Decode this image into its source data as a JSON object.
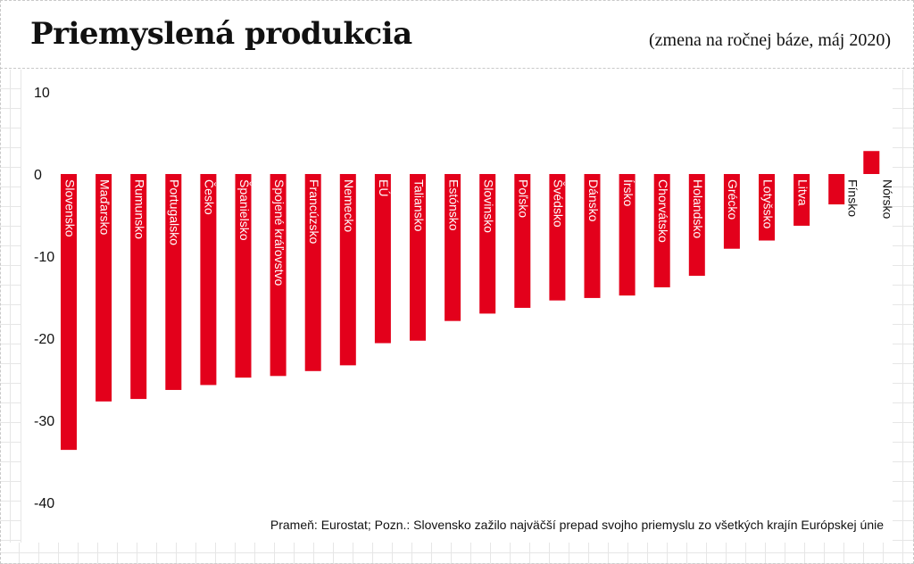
{
  "header": {
    "title": "Priemyslená produkcia",
    "subtitle": "(zmena na ročnej báze, máj 2020)"
  },
  "footnote": "Prameň: Eurostat; Pozn.: Slovensko zažilo najväčší prepad svojho priemyslu zo všetkých krajín Európskej únie",
  "colors": {
    "bar": "#e3001b",
    "text": "#111111",
    "background": "#ffffff"
  },
  "chart_data": {
    "type": "bar",
    "title": "Priemyslená produkcia",
    "subtitle": "(zmena na ročnej báze, máj 2020)",
    "xlabel": "",
    "ylabel": "",
    "ylim": [
      -40,
      10
    ],
    "yticks": [
      10,
      0,
      -10,
      -20,
      -30,
      -40
    ],
    "ytick_labels": [
      "10",
      "0",
      "-10",
      "-20",
      "-30",
      "-40"
    ],
    "grid": false,
    "legend": "none",
    "categories": [
      "Slovensko",
      "Maďarsko",
      "Rumunsko",
      "Portugalsko",
      "Česko",
      "Španielsko",
      "Spojené kráľovstvo",
      "Francúzsko",
      "Nemecko",
      "EÚ",
      "Taliansko",
      "Estónsko",
      "Slovinsko",
      "Poľsko",
      "Švédsko",
      "Dánsko",
      "Írsko",
      "Chorvátsko",
      "Holandsko",
      "Grécko",
      "Lotyšsko",
      "Litva",
      "Fínsko",
      "Nórsko"
    ],
    "values": [
      -33.6,
      -27.7,
      -27.4,
      -26.3,
      -25.7,
      -24.8,
      -24.6,
      -24.0,
      -23.3,
      -20.6,
      -20.3,
      -17.9,
      -17.0,
      -16.3,
      -15.4,
      -15.1,
      -14.8,
      -13.8,
      -12.4,
      -9.1,
      -8.1,
      -6.3,
      -3.7,
      2.8
    ]
  }
}
